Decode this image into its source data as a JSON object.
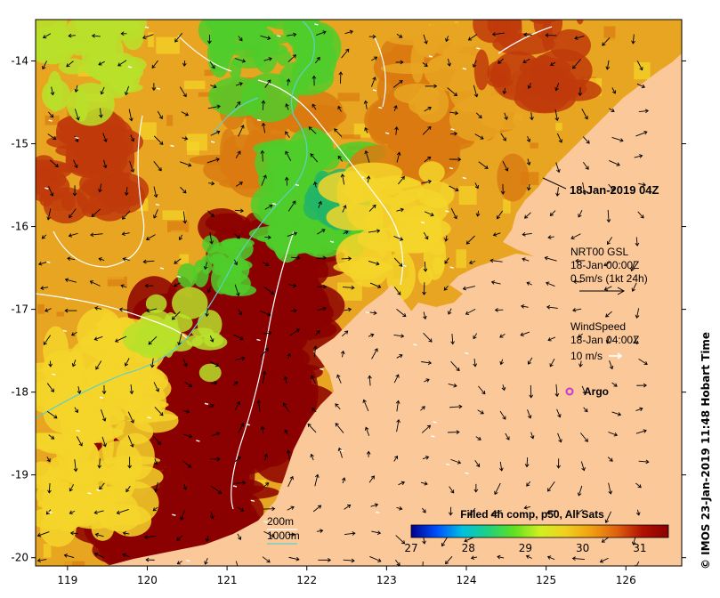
{
  "map": {
    "lon_range": [
      118.6,
      126.7
    ],
    "lat_range": [
      -20.1,
      -13.5
    ],
    "x_ticks": [
      "119",
      "120",
      "121",
      "122",
      "123",
      "124",
      "125",
      "126"
    ],
    "y_ticks": [
      "-14",
      "-15",
      "-16",
      "-17",
      "-18",
      "-19",
      "-20"
    ],
    "land_color": "#fbc89a",
    "ocean_colors": [
      "#8b0000",
      "#c0390a",
      "#d97a10",
      "#e8a521",
      "#f5d52a",
      "#b8e02a",
      "#4fcc2a",
      "#22b566"
    ],
    "front_line_color": "#ffffff",
    "isobath_color": "#5fd0c8"
  },
  "timestamp_label": "18-Jan-2019 04Z",
  "currents_legend": {
    "title": "NRT00 GSL",
    "date": "18-Jan 00:00Z",
    "scale": "0.5m/s (1kt 24h)"
  },
  "wind_legend": {
    "title": "WindSpeed",
    "date": "18-Jan 04:00Z",
    "scale": "10 m/s"
  },
  "argo_legend": {
    "label": "Argo",
    "marker_color": "#cc33cc"
  },
  "isobath_legend": {
    "label_200": "200m",
    "label_1000": "1000m"
  },
  "colorbar": {
    "title": "Filled 4h comp, p50, All Sats",
    "ticks": [
      "27",
      "28",
      "29",
      "30",
      "31"
    ],
    "stops": [
      "#00008b",
      "#0050ff",
      "#00c0e0",
      "#20d080",
      "#60e020",
      "#d0f020",
      "#f0d020",
      "#f0a010",
      "#e06010",
      "#b01000",
      "#8b0000"
    ]
  },
  "side_label": "© IMOS 23-Jan-2019 11:48 Hobart Time"
}
